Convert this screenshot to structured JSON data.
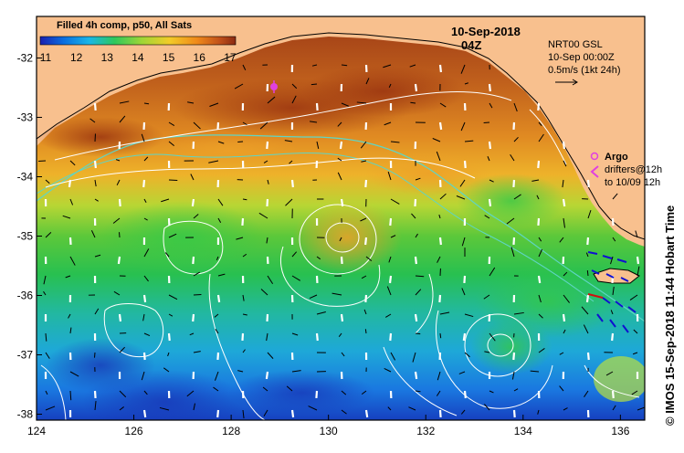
{
  "legend": {
    "title": "Filled 4h comp, p50, All Sats",
    "ticks": [
      "11",
      "12",
      "13",
      "14",
      "15",
      "16",
      "17"
    ],
    "colors": [
      "#1a1fb0",
      "#0a6ee0",
      "#19b6e8",
      "#2ec85c",
      "#9ed636",
      "#f2cc28",
      "#f08a1a",
      "#c0501a",
      "#8a2a12"
    ]
  },
  "date": {
    "line1": "10-Sep-2018",
    "line2": "04Z"
  },
  "currents_note": {
    "line1": "NRT00 GSL",
    "line2": "10-Sep 00:00Z",
    "line3": "0.5m/s (1kt 24h)"
  },
  "argo_legend": {
    "argo_label": "Argo",
    "drifters_line1": "drifters@12h",
    "drifters_line2": "to 10/09 12h"
  },
  "credit": "© IMOS 15-Sep-2018 11:44 Hobart Time",
  "axes": {
    "x_ticks": [
      {
        "value": 124,
        "label": "124"
      },
      {
        "value": 126,
        "label": "126"
      },
      {
        "value": 128,
        "label": "128"
      },
      {
        "value": 130,
        "label": "130"
      },
      {
        "value": 132,
        "label": "132"
      },
      {
        "value": 134,
        "label": "134"
      },
      {
        "value": 136,
        "label": "136"
      }
    ],
    "y_ticks": [
      {
        "value": -32,
        "label": "-32"
      },
      {
        "value": -33,
        "label": "-33"
      },
      {
        "value": -34,
        "label": "-34"
      },
      {
        "value": -35,
        "label": "-35"
      },
      {
        "value": -36,
        "label": "-36"
      },
      {
        "value": -37,
        "label": "-37"
      },
      {
        "value": -38,
        "label": "-38"
      }
    ],
    "lon_range": [
      124,
      136.5
    ],
    "lat_range": [
      -38.1,
      -31.3
    ]
  },
  "colors": {
    "land": "#f8c08e",
    "frame": "#000000",
    "contour": "#ffffff",
    "shelf": "#5fd5c5",
    "argo": "#e040e0",
    "drifter": "#1010d0",
    "drifter_red": "#d01010"
  }
}
